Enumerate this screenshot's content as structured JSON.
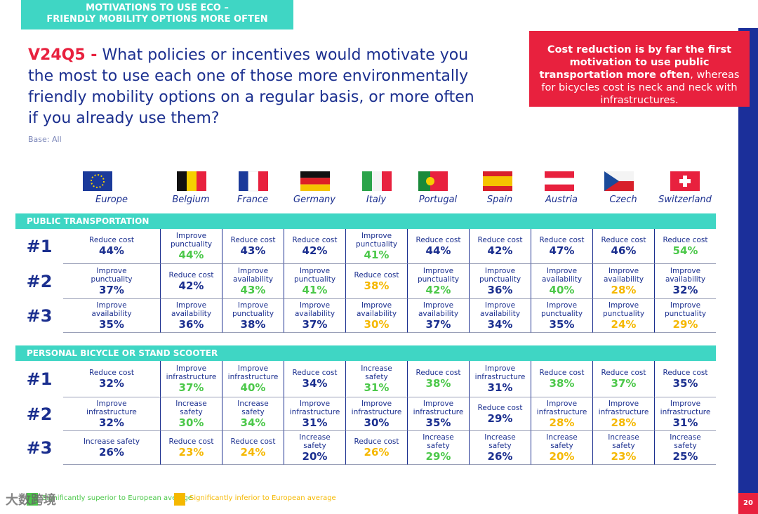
{
  "header": {
    "section": [
      "MOTIVATIONS TO USE ECO –",
      "FRIENDLY MOBILITY OPTIONS MORE OFTEN"
    ],
    "code": "V24Q5 -",
    "question": "What policies or incentives would motivate you the most to use each one of those more environmentally friendly mobility options on a regular basis, or more often if you already use them?",
    "base": "Base: All"
  },
  "callout": {
    "bold": "Cost reduction is by far the first motivation to use public transportation more often",
    "rest": ", whereas for bicycles cost is neck and neck with infrastructures."
  },
  "countries": [
    "Europe",
    "Belgium",
    "France",
    "Germany",
    "Italy",
    "Portugal",
    "Spain",
    "Austria",
    "Czech",
    "Switzerland"
  ],
  "ranks": [
    "#1",
    "#2",
    "#3"
  ],
  "sections": [
    {
      "title": "PUBLIC TRANSPORTATION",
      "rows": [
        [
          {
            "label": "Reduce cost",
            "value": "44%",
            "color": "#1b2f8f"
          },
          {
            "label": "Improve punctuality",
            "value": "44%",
            "color": "#4cc84a"
          },
          {
            "label": "Reduce cost",
            "value": "43%",
            "color": "#1b2f8f"
          },
          {
            "label": "Reduce cost",
            "value": "42%",
            "color": "#1b2f8f"
          },
          {
            "label": "Improve punctuality",
            "value": "41%",
            "color": "#4cc84a"
          },
          {
            "label": "Reduce cost",
            "value": "44%",
            "color": "#1b2f8f"
          },
          {
            "label": "Reduce cost",
            "value": "42%",
            "color": "#1b2f8f"
          },
          {
            "label": "Reduce cost",
            "value": "47%",
            "color": "#1b2f8f"
          },
          {
            "label": "Reduce cost",
            "value": "46%",
            "color": "#1b2f8f"
          },
          {
            "label": "Reduce cost",
            "value": "54%",
            "color": "#4cc84a"
          }
        ],
        [
          {
            "label": "Improve punctuality",
            "value": "37%",
            "color": "#1b2f8f"
          },
          {
            "label": "Reduce cost",
            "value": "42%",
            "color": "#1b2f8f"
          },
          {
            "label": "Improve availability",
            "value": "43%",
            "color": "#4cc84a"
          },
          {
            "label": "Improve punctuality",
            "value": "41%",
            "color": "#4cc84a"
          },
          {
            "label": "Reduce cost",
            "value": "38%",
            "color": "#f5b800"
          },
          {
            "label": "Improve punctuality",
            "value": "42%",
            "color": "#4cc84a"
          },
          {
            "label": "Improve punctuality",
            "value": "36%",
            "color": "#1b2f8f"
          },
          {
            "label": "Improve availability",
            "value": "40%",
            "color": "#4cc84a"
          },
          {
            "label": "Improve availability",
            "value": "28%",
            "color": "#f5b800"
          },
          {
            "label": "Improve availability",
            "value": "32%",
            "color": "#1b2f8f"
          }
        ],
        [
          {
            "label": "Improve availability",
            "value": "35%",
            "color": "#1b2f8f"
          },
          {
            "label": "Improve availability",
            "value": "36%",
            "color": "#1b2f8f"
          },
          {
            "label": "Improve punctuality",
            "value": "38%",
            "color": "#1b2f8f"
          },
          {
            "label": "Improve availability",
            "value": "37%",
            "color": "#1b2f8f"
          },
          {
            "label": "Improve availability",
            "value": "30%",
            "color": "#f5b800"
          },
          {
            "label": "Improve availability",
            "value": "37%",
            "color": "#1b2f8f"
          },
          {
            "label": "Improve availability",
            "value": "34%",
            "color": "#1b2f8f"
          },
          {
            "label": "Improve punctuality",
            "value": "35%",
            "color": "#1b2f8f"
          },
          {
            "label": "Improve punctuality",
            "value": "24%",
            "color": "#f5b800"
          },
          {
            "label": "Improve punctuality",
            "value": "29%",
            "color": "#f5b800"
          }
        ]
      ]
    },
    {
      "title": "PERSONAL BICYCLE OR STAND SCOOTER",
      "rows": [
        [
          {
            "label": "Reduce cost",
            "value": "32%",
            "color": "#1b2f8f"
          },
          {
            "label": "Improve infrastructure",
            "value": "37%",
            "color": "#4cc84a"
          },
          {
            "label": "Improve infrastructure",
            "value": "40%",
            "color": "#4cc84a"
          },
          {
            "label": "Reduce cost",
            "value": "34%",
            "color": "#1b2f8f"
          },
          {
            "label": "Increase safety",
            "value": "31%",
            "color": "#4cc84a"
          },
          {
            "label": "Reduce cost",
            "value": "38%",
            "color": "#4cc84a"
          },
          {
            "label": "Improve infrastructure",
            "value": "31%",
            "color": "#1b2f8f"
          },
          {
            "label": "Reduce cost",
            "value": "38%",
            "color": "#4cc84a"
          },
          {
            "label": "Reduce cost",
            "value": "37%",
            "color": "#4cc84a"
          },
          {
            "label": "Reduce cost",
            "value": "35%",
            "color": "#1b2f8f"
          }
        ],
        [
          {
            "label": "Improve infrastructure",
            "value": "32%",
            "color": "#1b2f8f"
          },
          {
            "label": "Increase safety",
            "value": "30%",
            "color": "#4cc84a"
          },
          {
            "label": "Increase safety",
            "value": "34%",
            "color": "#4cc84a"
          },
          {
            "label": "Improve infrastructure",
            "value": "31%",
            "color": "#1b2f8f"
          },
          {
            "label": "Improve infrastructure",
            "value": "30%",
            "color": "#1b2f8f"
          },
          {
            "label": "Improve infrastructure",
            "value": "35%",
            "color": "#1b2f8f"
          },
          {
            "label": "Reduce cost",
            "value": "29%",
            "color": "#1b2f8f"
          },
          {
            "label": "Improve infrastructure",
            "value": "28%",
            "color": "#f5b800"
          },
          {
            "label": "Improve infrastructure",
            "value": "28%",
            "color": "#f5b800"
          },
          {
            "label": "Improve infrastructure",
            "value": "31%",
            "color": "#1b2f8f"
          }
        ],
        [
          {
            "label": "Increase safety",
            "value": "26%",
            "color": "#1b2f8f"
          },
          {
            "label": "Reduce cost",
            "value": "23%",
            "color": "#f5b800"
          },
          {
            "label": "Reduce cost",
            "value": "24%",
            "color": "#f5b800"
          },
          {
            "label": "Increase safety",
            "value": "20%",
            "color": "#1b2f8f"
          },
          {
            "label": "Reduce cost",
            "value": "26%",
            "color": "#f5b800"
          },
          {
            "label": "Increase safety",
            "value": "29%",
            "color": "#4cc84a"
          },
          {
            "label": "Increase safety",
            "value": "26%",
            "color": "#1b2f8f"
          },
          {
            "label": "Increase safety",
            "value": "20%",
            "color": "#f5b800"
          },
          {
            "label": "Increase safety",
            "value": "23%",
            "color": "#f5b800"
          },
          {
            "label": "Increase safety",
            "value": "25%",
            "color": "#1b2f8f"
          }
        ]
      ]
    }
  ],
  "legend": [
    {
      "text": "Significantly superior to European average",
      "color": "#4cc84a"
    },
    {
      "text": "Significantly inferior to European average",
      "color": "#f5b800"
    }
  ],
  "watermark": "大数跨境",
  "page": "20"
}
